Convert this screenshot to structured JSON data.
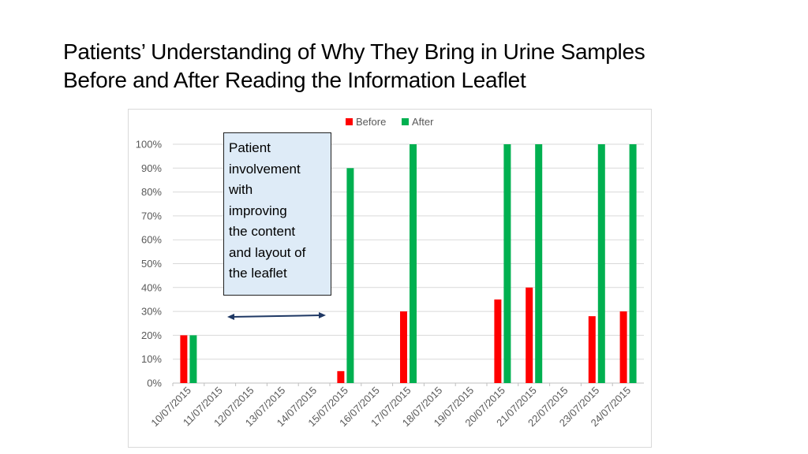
{
  "title_lines": [
    "Patients’ Understanding of Why They Bring in Urine Samples",
    "Before and After Reading the Information Leaflet"
  ],
  "annotation": {
    "lines": [
      "Patient",
      "involvement",
      "with",
      "improving",
      "the content",
      "and layout of",
      "the leaflet"
    ]
  },
  "colors": {
    "before": "#ff0000",
    "after": "#00b050",
    "annotation_fill": "#deebf7",
    "arrow": "#1f3864",
    "grid": "#d9d9d9"
  },
  "chart_data": {
    "type": "bar",
    "title": "",
    "xlabel": "",
    "ylabel": "",
    "ylim": [
      0,
      100
    ],
    "y_ticks": [
      "0%",
      "10%",
      "20%",
      "30%",
      "40%",
      "50%",
      "60%",
      "70%",
      "80%",
      "90%",
      "100%"
    ],
    "legend_position": "top-center",
    "grid": true,
    "categories": [
      "10/07/2015",
      "11/07/2015",
      "12/07/2015",
      "13/07/2015",
      "14/07/2015",
      "15/07/2015",
      "16/07/2015",
      "17/07/2015",
      "18/07/2015",
      "19/07/2015",
      "20/07/2015",
      "21/07/2015",
      "22/07/2015",
      "23/07/2015",
      "24/07/2015"
    ],
    "series": [
      {
        "name": "Before",
        "values": [
          20,
          null,
          null,
          null,
          null,
          5,
          null,
          30,
          null,
          null,
          35,
          40,
          null,
          28,
          30
        ]
      },
      {
        "name": "After",
        "values": [
          20,
          null,
          null,
          null,
          null,
          90,
          null,
          100,
          null,
          null,
          100,
          100,
          null,
          100,
          100
        ]
      }
    ]
  }
}
